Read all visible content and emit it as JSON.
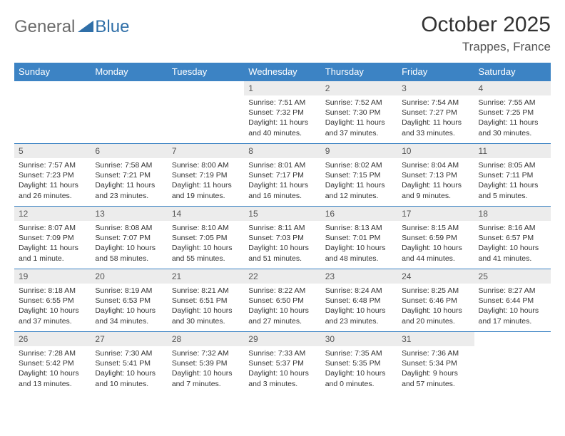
{
  "logo": {
    "textGray": "General",
    "textBlue": "Blue"
  },
  "title": "October 2025",
  "location": "Trappes, France",
  "colors": {
    "headerBg": "#3c83c4",
    "dayNumBg": "#ececec",
    "rowBorder": "#3c83c4",
    "logoGray": "#6b6b6b",
    "logoBlue": "#2f6fa8"
  },
  "dayHeaders": [
    "Sunday",
    "Monday",
    "Tuesday",
    "Wednesday",
    "Thursday",
    "Friday",
    "Saturday"
  ],
  "weeks": [
    [
      {
        "n": "",
        "sr": "",
        "ss": "",
        "dl": ""
      },
      {
        "n": "",
        "sr": "",
        "ss": "",
        "dl": ""
      },
      {
        "n": "",
        "sr": "",
        "ss": "",
        "dl": ""
      },
      {
        "n": "1",
        "sr": "7:51 AM",
        "ss": "7:32 PM",
        "dl": "11 hours and 40 minutes."
      },
      {
        "n": "2",
        "sr": "7:52 AM",
        "ss": "7:30 PM",
        "dl": "11 hours and 37 minutes."
      },
      {
        "n": "3",
        "sr": "7:54 AM",
        "ss": "7:27 PM",
        "dl": "11 hours and 33 minutes."
      },
      {
        "n": "4",
        "sr": "7:55 AM",
        "ss": "7:25 PM",
        "dl": "11 hours and 30 minutes."
      }
    ],
    [
      {
        "n": "5",
        "sr": "7:57 AM",
        "ss": "7:23 PM",
        "dl": "11 hours and 26 minutes."
      },
      {
        "n": "6",
        "sr": "7:58 AM",
        "ss": "7:21 PM",
        "dl": "11 hours and 23 minutes."
      },
      {
        "n": "7",
        "sr": "8:00 AM",
        "ss": "7:19 PM",
        "dl": "11 hours and 19 minutes."
      },
      {
        "n": "8",
        "sr": "8:01 AM",
        "ss": "7:17 PM",
        "dl": "11 hours and 16 minutes."
      },
      {
        "n": "9",
        "sr": "8:02 AM",
        "ss": "7:15 PM",
        "dl": "11 hours and 12 minutes."
      },
      {
        "n": "10",
        "sr": "8:04 AM",
        "ss": "7:13 PM",
        "dl": "11 hours and 9 minutes."
      },
      {
        "n": "11",
        "sr": "8:05 AM",
        "ss": "7:11 PM",
        "dl": "11 hours and 5 minutes."
      }
    ],
    [
      {
        "n": "12",
        "sr": "8:07 AM",
        "ss": "7:09 PM",
        "dl": "11 hours and 1 minute."
      },
      {
        "n": "13",
        "sr": "8:08 AM",
        "ss": "7:07 PM",
        "dl": "10 hours and 58 minutes."
      },
      {
        "n": "14",
        "sr": "8:10 AM",
        "ss": "7:05 PM",
        "dl": "10 hours and 55 minutes."
      },
      {
        "n": "15",
        "sr": "8:11 AM",
        "ss": "7:03 PM",
        "dl": "10 hours and 51 minutes."
      },
      {
        "n": "16",
        "sr": "8:13 AM",
        "ss": "7:01 PM",
        "dl": "10 hours and 48 minutes."
      },
      {
        "n": "17",
        "sr": "8:15 AM",
        "ss": "6:59 PM",
        "dl": "10 hours and 44 minutes."
      },
      {
        "n": "18",
        "sr": "8:16 AM",
        "ss": "6:57 PM",
        "dl": "10 hours and 41 minutes."
      }
    ],
    [
      {
        "n": "19",
        "sr": "8:18 AM",
        "ss": "6:55 PM",
        "dl": "10 hours and 37 minutes."
      },
      {
        "n": "20",
        "sr": "8:19 AM",
        "ss": "6:53 PM",
        "dl": "10 hours and 34 minutes."
      },
      {
        "n": "21",
        "sr": "8:21 AM",
        "ss": "6:51 PM",
        "dl": "10 hours and 30 minutes."
      },
      {
        "n": "22",
        "sr": "8:22 AM",
        "ss": "6:50 PM",
        "dl": "10 hours and 27 minutes."
      },
      {
        "n": "23",
        "sr": "8:24 AM",
        "ss": "6:48 PM",
        "dl": "10 hours and 23 minutes."
      },
      {
        "n": "24",
        "sr": "8:25 AM",
        "ss": "6:46 PM",
        "dl": "10 hours and 20 minutes."
      },
      {
        "n": "25",
        "sr": "8:27 AM",
        "ss": "6:44 PM",
        "dl": "10 hours and 17 minutes."
      }
    ],
    [
      {
        "n": "26",
        "sr": "7:28 AM",
        "ss": "5:42 PM",
        "dl": "10 hours and 13 minutes."
      },
      {
        "n": "27",
        "sr": "7:30 AM",
        "ss": "5:41 PM",
        "dl": "10 hours and 10 minutes."
      },
      {
        "n": "28",
        "sr": "7:32 AM",
        "ss": "5:39 PM",
        "dl": "10 hours and 7 minutes."
      },
      {
        "n": "29",
        "sr": "7:33 AM",
        "ss": "5:37 PM",
        "dl": "10 hours and 3 minutes."
      },
      {
        "n": "30",
        "sr": "7:35 AM",
        "ss": "5:35 PM",
        "dl": "10 hours and 0 minutes."
      },
      {
        "n": "31",
        "sr": "7:36 AM",
        "ss": "5:34 PM",
        "dl": "9 hours and 57 minutes."
      },
      {
        "n": "",
        "sr": "",
        "ss": "",
        "dl": ""
      }
    ]
  ],
  "labels": {
    "sunrise": "Sunrise:",
    "sunset": "Sunset:",
    "daylight": "Daylight:"
  }
}
